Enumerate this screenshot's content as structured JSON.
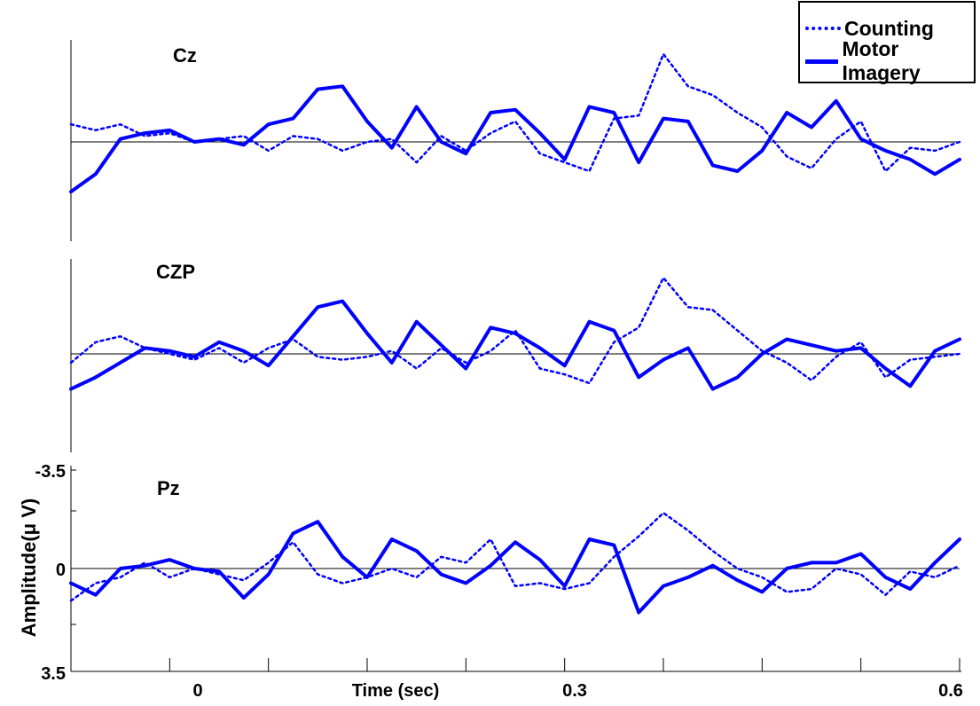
{
  "chart_data": {
    "type": "line",
    "xlabel": "Time (sec)",
    "ylabel": "Amplitude(μ V)",
    "x_ticks": [
      "0",
      "0.3",
      "0.6"
    ],
    "y_ticks": [
      "-3.5",
      "0",
      "3.5"
    ],
    "xlim": [
      -0.3,
      0.6
    ],
    "ylim": [
      -3.5,
      3.5
    ],
    "legend": {
      "placement": "top-right",
      "entries": [
        {
          "name": "Counting",
          "style": "dotted"
        },
        {
          "name": "Motor Imagery",
          "style": "solid"
        }
      ]
    },
    "color": "#0000ff",
    "panels": [
      {
        "name": "Cz",
        "series": [
          {
            "name": "Counting",
            "x": [
              -0.3,
              -0.275,
              -0.25,
              -0.225,
              -0.2,
              -0.175,
              -0.15,
              -0.125,
              -0.1,
              -0.075,
              -0.05,
              -0.025,
              0,
              0.025,
              0.05,
              0.075,
              0.1,
              0.125,
              0.15,
              0.175,
              0.2,
              0.225,
              0.25,
              0.275,
              0.3,
              0.325,
              0.35,
              0.375,
              0.4,
              0.425,
              0.45,
              0.475,
              0.5,
              0.525,
              0.55,
              0.575,
              0.6
            ],
            "y": [
              0.6,
              0.4,
              0.6,
              0.2,
              0.3,
              0.0,
              0.1,
              0.2,
              -0.3,
              0.2,
              0.1,
              -0.3,
              0.0,
              0.1,
              -0.7,
              0.2,
              -0.3,
              0.3,
              0.7,
              -0.4,
              -0.7,
              -1.0,
              0.8,
              0.9,
              3.0,
              1.9,
              1.6,
              1.0,
              0.5,
              -0.5,
              -0.9,
              0.1,
              0.7,
              -1.0,
              -0.2,
              -0.3,
              0.0
            ]
          },
          {
            "name": "Motor Imagery",
            "x": [
              -0.3,
              -0.275,
              -0.25,
              -0.225,
              -0.2,
              -0.175,
              -0.15,
              -0.125,
              -0.1,
              -0.075,
              -0.05,
              -0.025,
              0,
              0.025,
              0.05,
              0.075,
              0.1,
              0.125,
              0.15,
              0.175,
              0.2,
              0.225,
              0.25,
              0.275,
              0.3,
              0.325,
              0.35,
              0.375,
              0.4,
              0.425,
              0.45,
              0.475,
              0.5,
              0.525,
              0.55,
              0.575,
              0.6
            ],
            "y": [
              -1.7,
              -1.1,
              0.1,
              0.3,
              0.4,
              0.0,
              0.1,
              -0.1,
              0.6,
              0.8,
              1.8,
              1.9,
              0.7,
              -0.2,
              1.2,
              0.0,
              -0.4,
              1.0,
              1.1,
              0.3,
              -0.6,
              1.2,
              1.0,
              -0.7,
              0.8,
              0.7,
              -0.8,
              -1.0,
              -0.3,
              1.0,
              0.5,
              1.4,
              0.1,
              -0.3,
              -0.6,
              -1.1,
              -0.6
            ]
          }
        ]
      },
      {
        "name": "CZP",
        "series": [
          {
            "name": "Counting",
            "x": [
              -0.3,
              -0.275,
              -0.25,
              -0.225,
              -0.2,
              -0.175,
              -0.15,
              -0.125,
              -0.1,
              -0.075,
              -0.05,
              -0.025,
              0,
              0.025,
              0.05,
              0.075,
              0.1,
              0.125,
              0.15,
              0.175,
              0.2,
              0.225,
              0.25,
              0.275,
              0.3,
              0.325,
              0.35,
              0.375,
              0.4,
              0.425,
              0.45,
              0.475,
              0.5,
              0.525,
              0.55,
              0.575,
              0.6
            ],
            "y": [
              -0.3,
              0.4,
              0.6,
              0.2,
              0.0,
              -0.2,
              0.2,
              -0.3,
              0.2,
              0.5,
              -0.1,
              -0.2,
              -0.1,
              0.1,
              -0.5,
              0.2,
              -0.3,
              0.1,
              0.8,
              -0.5,
              -0.7,
              -1.0,
              0.4,
              0.9,
              2.6,
              1.6,
              1.5,
              0.8,
              0.1,
              -0.3,
              -0.9,
              -0.1,
              0.4,
              -0.8,
              -0.2,
              -0.1,
              0.0
            ]
          },
          {
            "name": "Motor Imagery",
            "x": [
              -0.3,
              -0.275,
              -0.25,
              -0.225,
              -0.2,
              -0.175,
              -0.15,
              -0.125,
              -0.1,
              -0.075,
              -0.05,
              -0.025,
              0,
              0.025,
              0.05,
              0.075,
              0.1,
              0.125,
              0.15,
              0.175,
              0.2,
              0.225,
              0.25,
              0.275,
              0.3,
              0.325,
              0.35,
              0.375,
              0.4,
              0.425,
              0.45,
              0.475,
              0.5,
              0.525,
              0.55,
              0.575,
              0.6
            ],
            "y": [
              -1.2,
              -0.8,
              -0.3,
              0.2,
              0.1,
              -0.1,
              0.4,
              0.1,
              -0.4,
              0.6,
              1.6,
              1.8,
              0.7,
              -0.3,
              1.1,
              0.3,
              -0.5,
              0.9,
              0.7,
              0.2,
              -0.4,
              1.1,
              0.8,
              -0.8,
              -0.2,
              0.2,
              -1.2,
              -0.8,
              0.0,
              0.5,
              0.3,
              0.1,
              0.2,
              -0.5,
              -1.1,
              0.1,
              0.5
            ]
          }
        ]
      },
      {
        "name": "Pz",
        "series": [
          {
            "name": "Counting",
            "x": [
              -0.3,
              -0.275,
              -0.25,
              -0.225,
              -0.2,
              -0.175,
              -0.15,
              -0.125,
              -0.1,
              -0.075,
              -0.05,
              -0.025,
              0,
              0.025,
              0.05,
              0.075,
              0.1,
              0.125,
              0.15,
              0.175,
              0.2,
              0.225,
              0.25,
              0.275,
              0.3,
              0.325,
              0.35,
              0.375,
              0.4,
              0.425,
              0.45,
              0.475,
              0.5,
              0.525,
              0.55,
              0.575,
              0.6
            ],
            "y": [
              -1.1,
              -0.5,
              -0.3,
              0.2,
              -0.3,
              0.0,
              -0.2,
              -0.4,
              0.2,
              0.9,
              -0.2,
              -0.5,
              -0.3,
              0.0,
              -0.3,
              0.4,
              0.2,
              1.0,
              -0.6,
              -0.5,
              -0.7,
              -0.5,
              0.4,
              1.1,
              1.9,
              1.3,
              0.6,
              0.0,
              -0.3,
              -0.8,
              -0.7,
              0.0,
              -0.2,
              -0.9,
              -0.1,
              -0.3,
              0.1
            ]
          },
          {
            "name": "Motor Imagery",
            "x": [
              -0.3,
              -0.275,
              -0.25,
              -0.225,
              -0.2,
              -0.175,
              -0.15,
              -0.125,
              -0.1,
              -0.075,
              -0.05,
              -0.025,
              0,
              0.025,
              0.05,
              0.075,
              0.1,
              0.125,
              0.15,
              0.175,
              0.2,
              0.225,
              0.25,
              0.275,
              0.3,
              0.325,
              0.35,
              0.375,
              0.4,
              0.425,
              0.45,
              0.475,
              0.5,
              0.525,
              0.55,
              0.575,
              0.6
            ],
            "y": [
              -0.5,
              -0.9,
              0.0,
              0.1,
              0.3,
              0.0,
              -0.1,
              -1.0,
              -0.2,
              1.2,
              1.6,
              0.4,
              -0.3,
              1.0,
              0.6,
              -0.2,
              -0.5,
              0.1,
              0.9,
              0.3,
              -0.6,
              1.0,
              0.8,
              -1.5,
              -0.6,
              -0.3,
              0.1,
              -0.4,
              -0.8,
              0.0,
              0.2,
              0.2,
              0.5,
              -0.3,
              -0.7,
              0.2,
              1.0
            ]
          }
        ]
      }
    ]
  }
}
